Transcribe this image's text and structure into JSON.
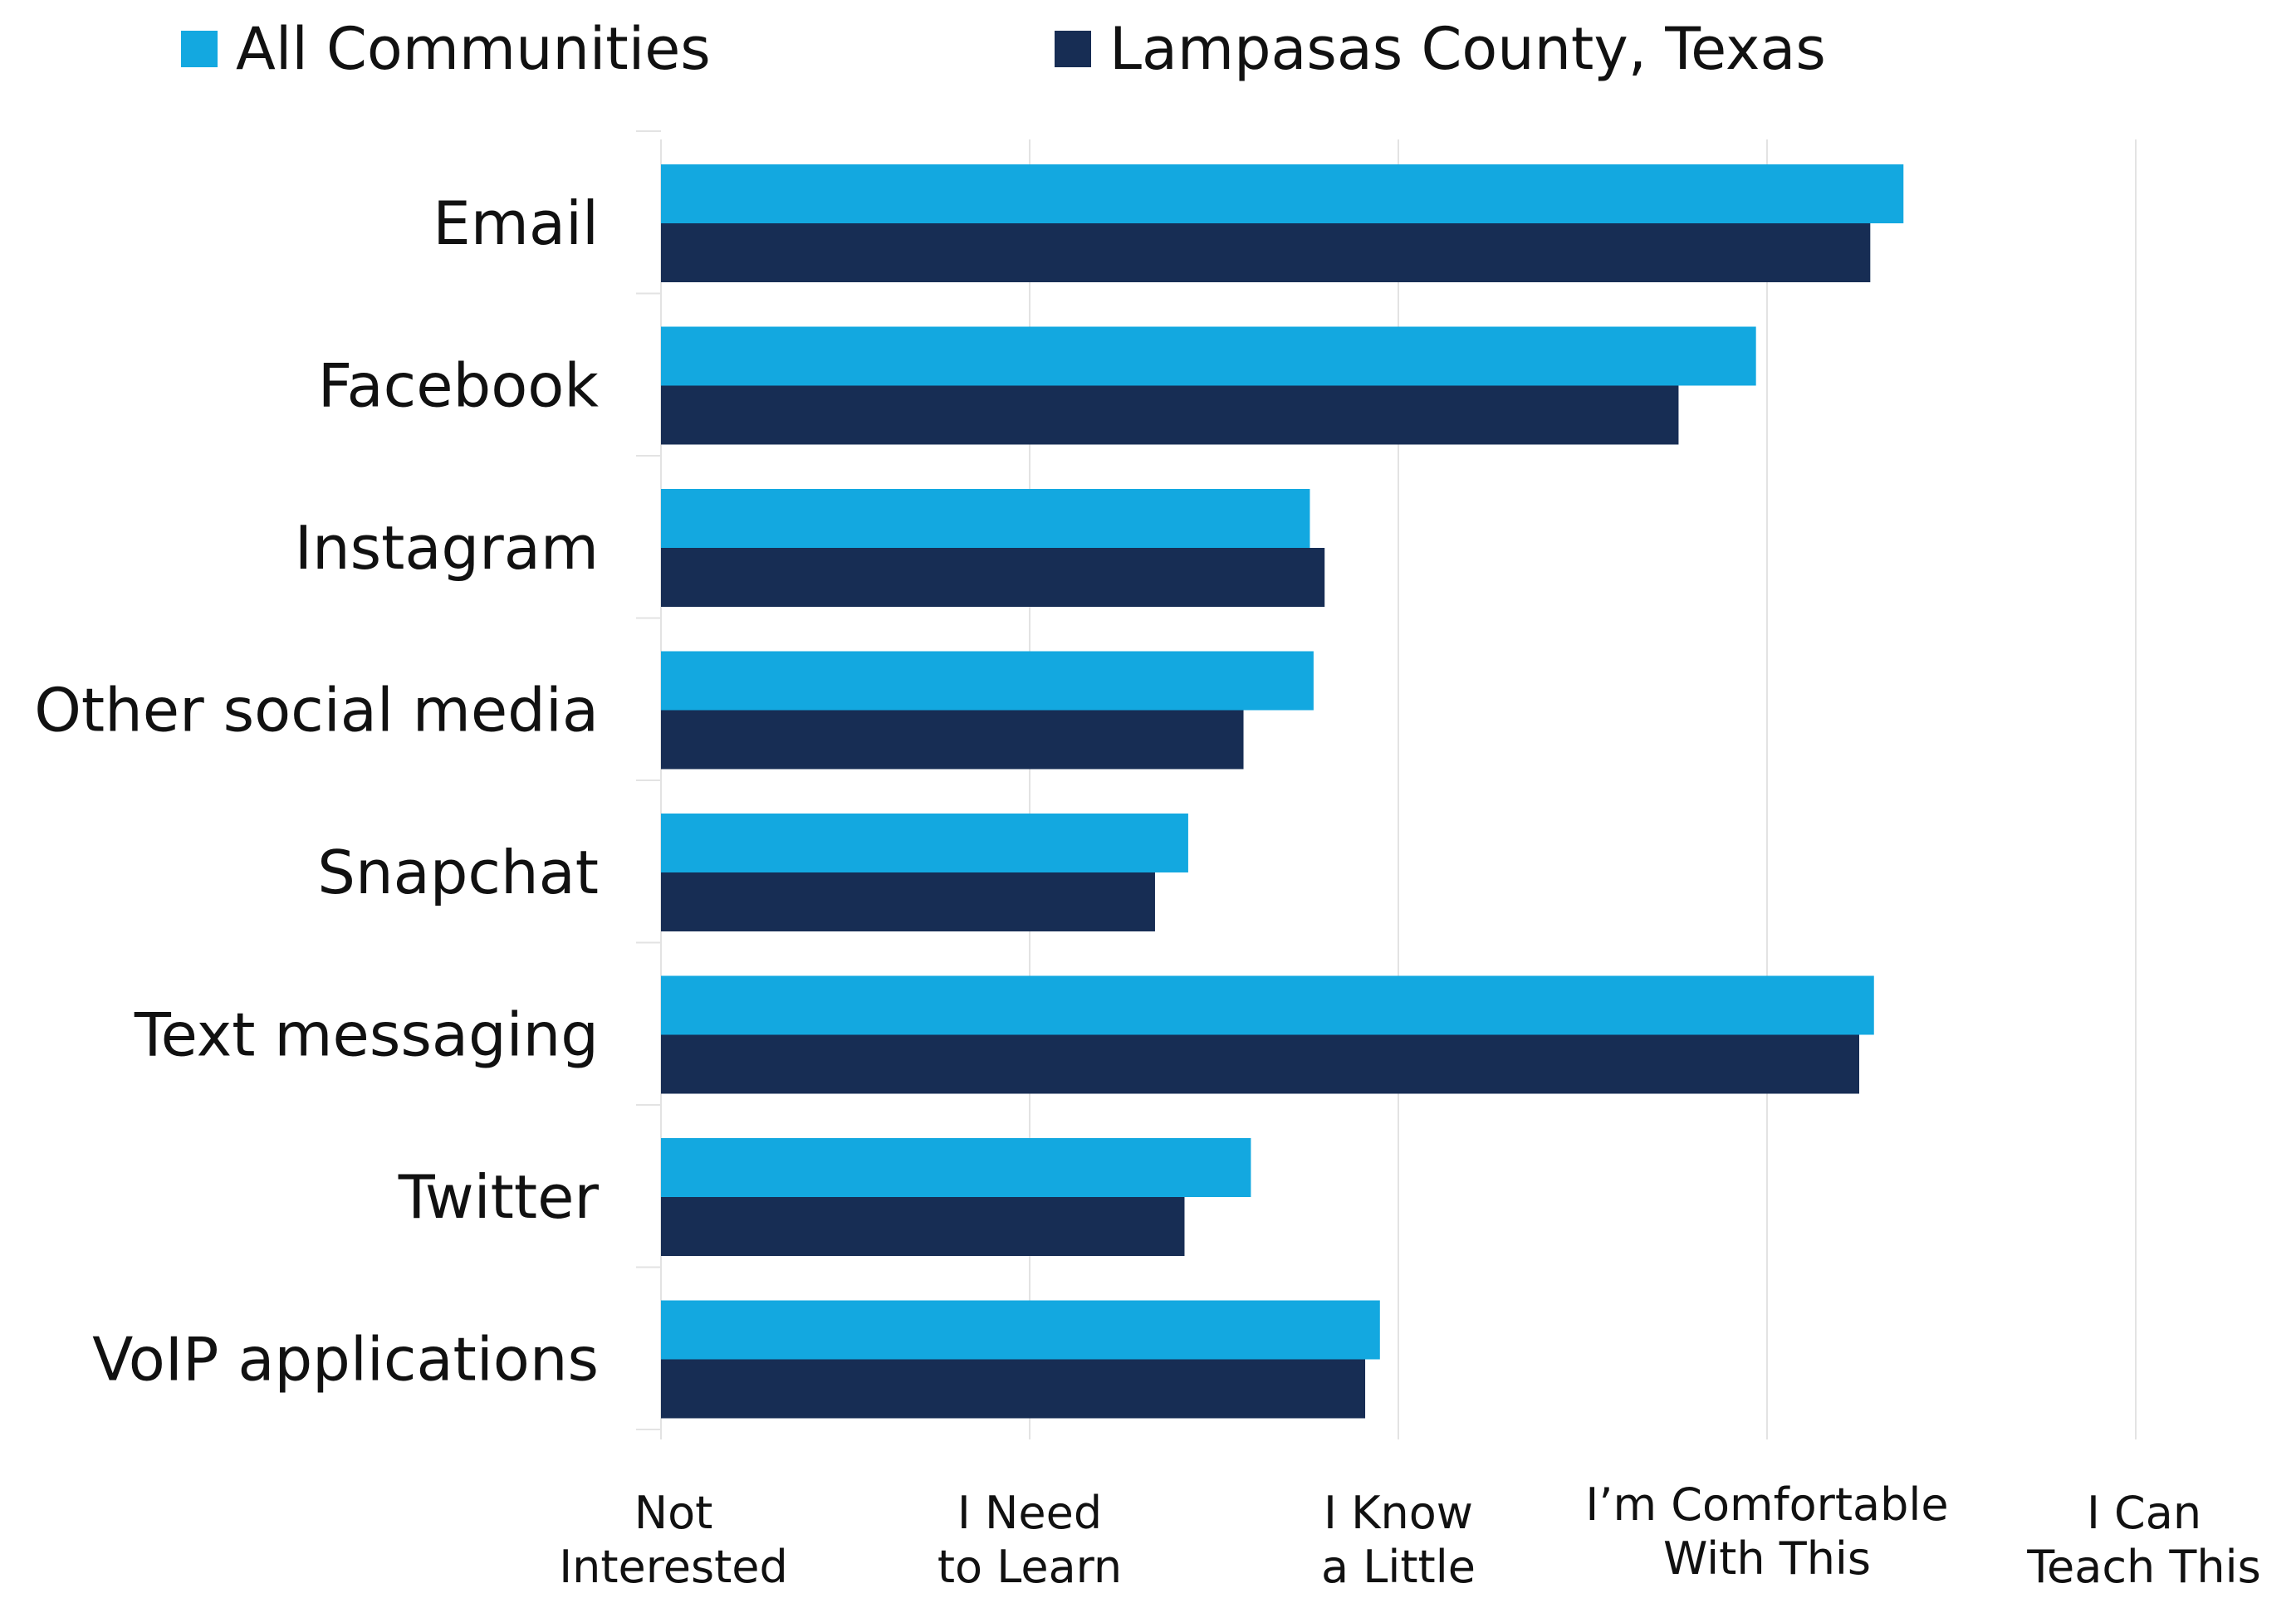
{
  "chart_data": {
    "type": "bar",
    "orientation": "horizontal",
    "categories": [
      "Email",
      "Facebook",
      "Instagram",
      "Other social media",
      "Snapchat",
      "Text messaging",
      "Twitter",
      "VoIP applications"
    ],
    "series": [
      {
        "name": "All Communities",
        "color": "#13A8E0",
        "values": [
          3.37,
          2.97,
          1.76,
          1.77,
          1.43,
          3.29,
          1.6,
          1.95
        ]
      },
      {
        "name": "Lampasas County, Texas",
        "color": "#172D54",
        "values": [
          3.28,
          2.76,
          1.8,
          1.58,
          1.34,
          3.25,
          1.42,
          1.91
        ]
      }
    ],
    "x_ticks": [
      {
        "value": 0,
        "lines": [
          "Not",
          "Interested"
        ]
      },
      {
        "value": 1,
        "lines": [
          "I Need",
          "to Learn"
        ]
      },
      {
        "value": 2,
        "lines": [
          "I Know",
          "a Little"
        ]
      },
      {
        "value": 3,
        "lines": [
          "I’m Comfortable",
          "With This"
        ]
      },
      {
        "value": 4,
        "lines": [
          "I Can",
          "Teach This"
        ]
      }
    ],
    "xlim": [
      0,
      4
    ],
    "grid": true,
    "legend_position": "top"
  }
}
